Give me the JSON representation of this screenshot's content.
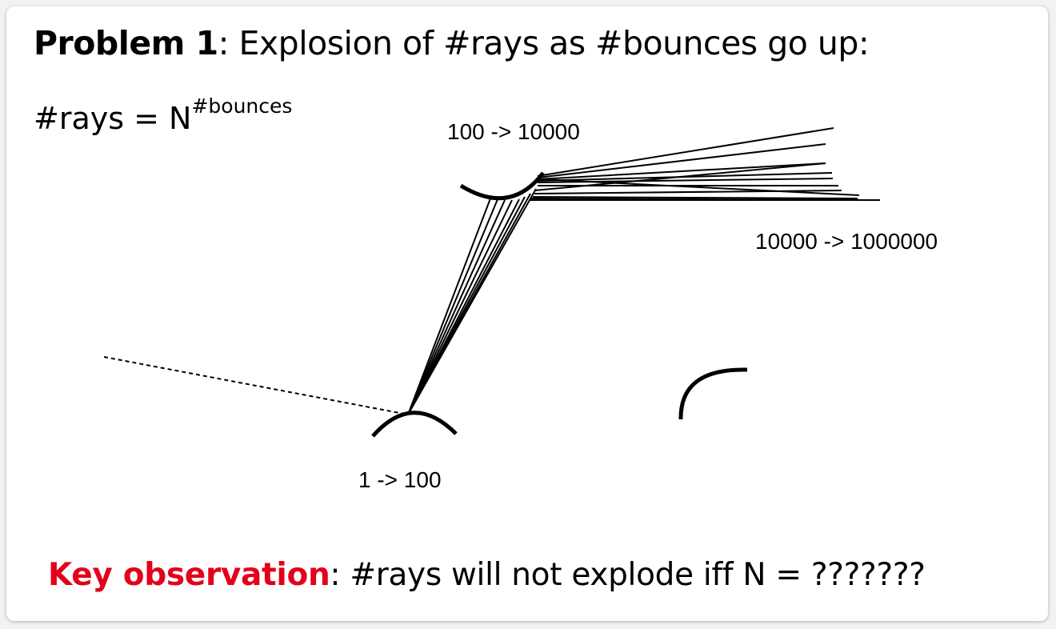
{
  "title": {
    "bold": "Problem 1",
    "rest": ": Explosion of #rays as #bounces go up:"
  },
  "formula": {
    "base": "#rays = N",
    "exponent": "#bounces"
  },
  "labels": {
    "first_bounce": "1 -> 100",
    "second_bounce": "100 -> 10000",
    "third_bounce": "10000 -> 1000000"
  },
  "key_observation": {
    "highlight": "Key observation",
    "rest": ": #rays will not explode iff N = ???????"
  },
  "colors": {
    "highlight": "#e3001b",
    "ink": "#000000"
  }
}
